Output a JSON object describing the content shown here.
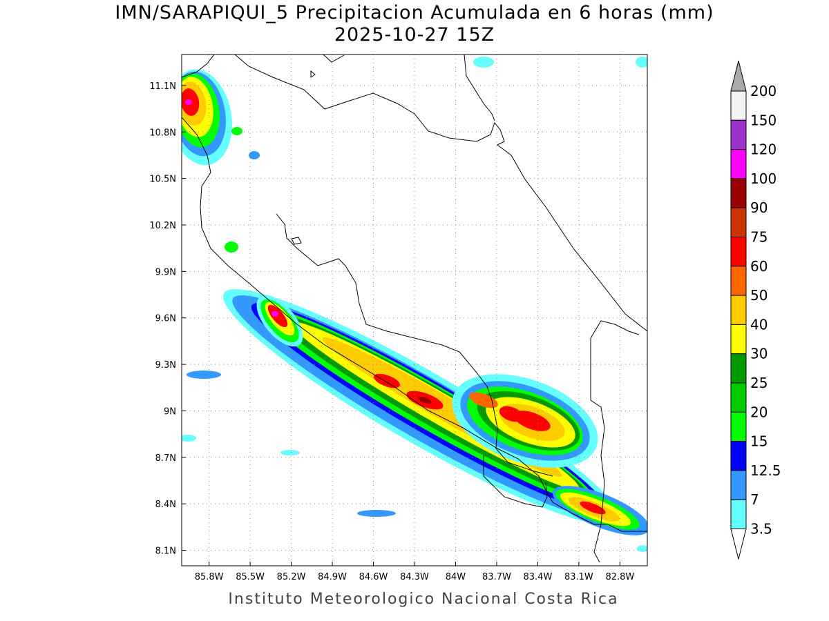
{
  "title": {
    "line1": "IMN/SARAPIQUI_5 Precipitacion Acumulada en 6 horas (mm)",
    "line2": "2025-10-27 15Z"
  },
  "footer": "Instituto Meteorologico Nacional Costa Rica",
  "map": {
    "lon_range": [
      -86.0,
      -82.6
    ],
    "lat_range": [
      8.0,
      11.3
    ],
    "lon_ticks": [
      {
        "value": -85.8,
        "label": "85.8W"
      },
      {
        "value": -85.5,
        "label": "85.5W"
      },
      {
        "value": -85.2,
        "label": "85.2W"
      },
      {
        "value": -84.9,
        "label": "84.9W"
      },
      {
        "value": -84.6,
        "label": "84.6W"
      },
      {
        "value": -84.3,
        "label": "84.3W"
      },
      {
        "value": -84.0,
        "label": "84W"
      },
      {
        "value": -83.7,
        "label": "83.7W"
      },
      {
        "value": -83.4,
        "label": "83.4W"
      },
      {
        "value": -83.1,
        "label": "83.1W"
      },
      {
        "value": -82.8,
        "label": "82.8W"
      }
    ],
    "lat_ticks": [
      {
        "value": 11.1,
        "label": "11.1N"
      },
      {
        "value": 10.8,
        "label": "10.8N"
      },
      {
        "value": 10.5,
        "label": "10.5N"
      },
      {
        "value": 10.2,
        "label": "10.2N"
      },
      {
        "value": 9.9,
        "label": "9.9N"
      },
      {
        "value": 9.6,
        "label": "9.6N"
      },
      {
        "value": 9.3,
        "label": "9.3N"
      },
      {
        "value": 9.0,
        "label": "9N"
      },
      {
        "value": 8.7,
        "label": "8.7N"
      },
      {
        "value": 8.4,
        "label": "8.4N"
      },
      {
        "value": 8.1,
        "label": "8.1N"
      }
    ],
    "grid": "dotted"
  },
  "colorbar": {
    "unit": "mm",
    "levels": [
      {
        "label": "3.5",
        "color": "#66ffff"
      },
      {
        "label": "7",
        "color": "#3399ff"
      },
      {
        "label": "12.5",
        "color": "#0000ff"
      },
      {
        "label": "15",
        "color": "#00ff00"
      },
      {
        "label": "20",
        "color": "#00cc00"
      },
      {
        "label": "25",
        "color": "#009900"
      },
      {
        "label": "30",
        "color": "#ffff00"
      },
      {
        "label": "40",
        "color": "#ffcc00"
      },
      {
        "label": "50",
        "color": "#ff6600"
      },
      {
        "label": "60",
        "color": "#ff0000"
      },
      {
        "label": "75",
        "color": "#cc3300"
      },
      {
        "label": "90",
        "color": "#990000"
      },
      {
        "label": "100",
        "color": "#ff00ff"
      },
      {
        "label": "120",
        "color": "#9933cc"
      },
      {
        "label": "150",
        "color": "#f4f4f4"
      },
      {
        "label": "200",
        "color": "#aaaaaa"
      }
    ]
  }
}
